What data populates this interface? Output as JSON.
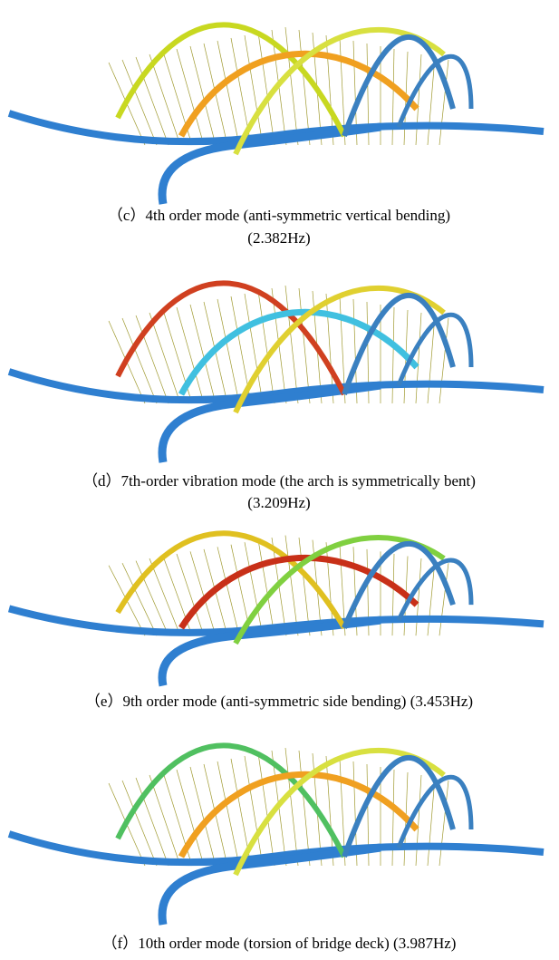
{
  "figures": [
    {
      "caption": [
        "（c）4th order mode (anti-symmetric vertical bending)",
        "(2.382Hz)"
      ]
    },
    {
      "caption": [
        "（d）7th-order vibration mode (the arch is symmetrically bent)",
        "(3.209Hz)"
      ]
    },
    {
      "caption": [
        "（e）9th order mode (anti-symmetric side bending) (3.453Hz)"
      ]
    },
    {
      "caption": [
        "（f）10th order mode (torsion of bridge deck) (3.987Hz)"
      ]
    }
  ]
}
